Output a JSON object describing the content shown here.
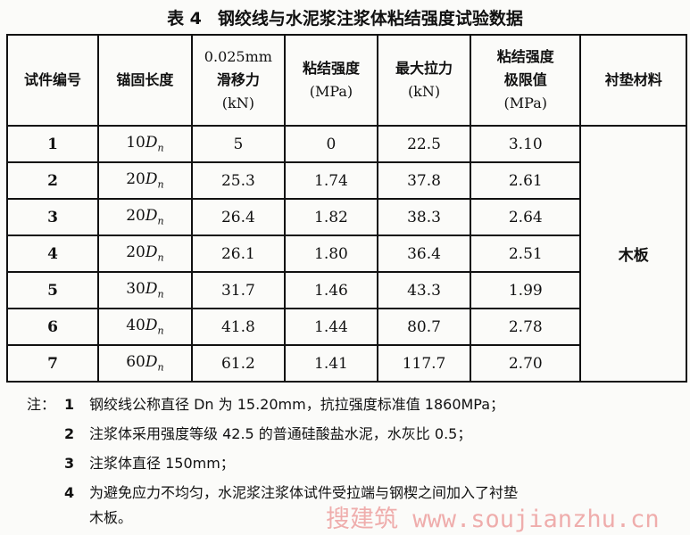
{
  "title": {
    "number": "表 4",
    "text": "钢绞线与水泥浆注浆体粘结强度试验数据"
  },
  "headers": [
    [
      "试件编号"
    ],
    [
      "锚固长度"
    ],
    [
      "0.025mm",
      "滑移力",
      "(kN)"
    ],
    [
      "粘结强度",
      "(MPa)"
    ],
    [
      "最大拉力",
      "(kN)"
    ],
    [
      "粘结强度",
      "极限值",
      "(MPa)"
    ],
    [
      "衬垫材料"
    ]
  ],
  "anchor_symbol": "D",
  "anchor_sub": "n",
  "rows": [
    {
      "id": "1",
      "anchor": "10",
      "slip": "5",
      "bond": "0",
      "max": "22.5",
      "ult": "3.10"
    },
    {
      "id": "2",
      "anchor": "20",
      "slip": "25.3",
      "bond": "1.74",
      "max": "37.8",
      "ult": "2.61"
    },
    {
      "id": "3",
      "anchor": "20",
      "slip": "26.4",
      "bond": "1.82",
      "max": "38.3",
      "ult": "2.64"
    },
    {
      "id": "4",
      "anchor": "20",
      "slip": "26.1",
      "bond": "1.80",
      "max": "36.4",
      "ult": "2.51"
    },
    {
      "id": "5",
      "anchor": "30",
      "slip": "31.7",
      "bond": "1.46",
      "max": "43.3",
      "ult": "1.99"
    },
    {
      "id": "6",
      "anchor": "40",
      "slip": "41.8",
      "bond": "1.44",
      "max": "80.7",
      "ult": "2.78"
    },
    {
      "id": "7",
      "anchor": "60",
      "slip": "61.2",
      "bond": "1.41",
      "max": "117.7",
      "ult": "2.70"
    }
  ],
  "material": "木板",
  "notes": {
    "label": "注：",
    "items": [
      {
        "num": "1",
        "text": "钢绞线公称直径 Dn 为 15.20mm，抗拉强度标准值 1860MPa；"
      },
      {
        "num": "2",
        "text": "注浆体采用强度等级 42.5 的普通硅酸盐水泥，水灰比 0.5；"
      },
      {
        "num": "3",
        "text": "注浆体直径 150mm；"
      },
      {
        "num": "4",
        "text": "为避免应力不均匀，水泥浆注浆体试件受拉端与钢楔之间加入了衬垫"
      }
    ],
    "continuation": "木板。"
  },
  "watermark": "搜建筑 www.soujianzhu.cn"
}
